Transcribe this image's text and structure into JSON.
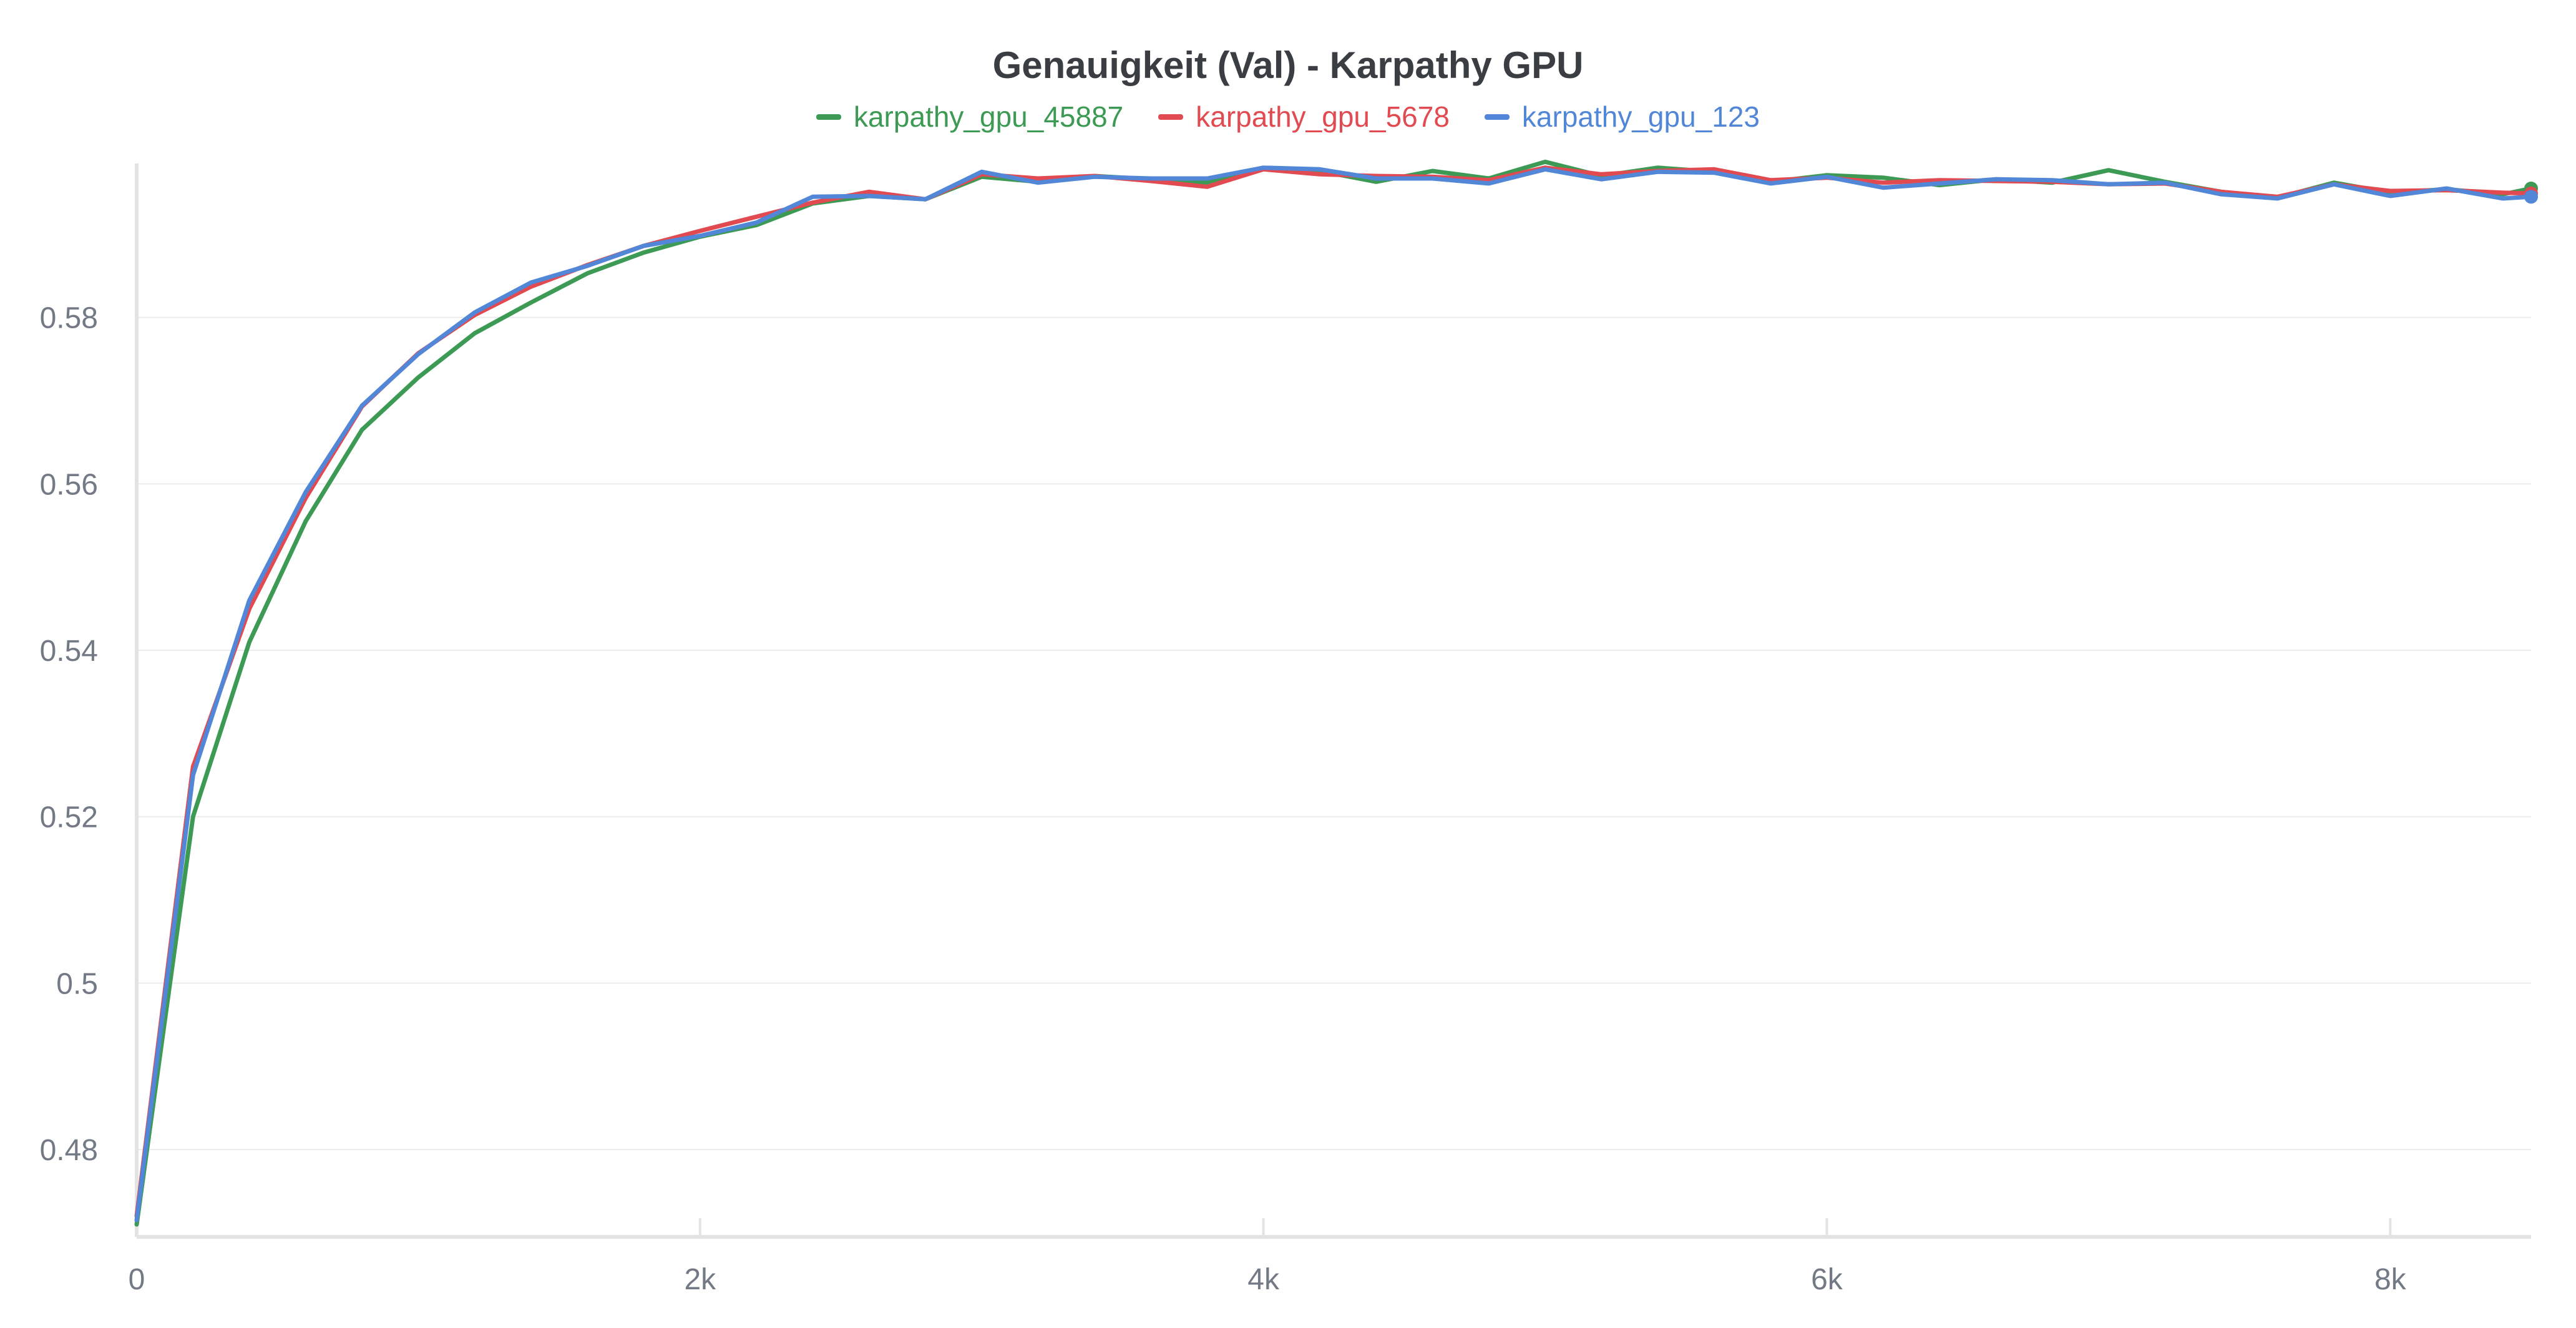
{
  "chart_data": {
    "type": "line",
    "title": "Genauigkeit (Val) - Karpathy GPU",
    "xlabel": "",
    "ylabel": "",
    "xlim": [
      0,
      8500
    ],
    "ylim": [
      0.4695,
      0.5985
    ],
    "xticks": [
      0,
      2000,
      4000,
      6000,
      8000
    ],
    "xtick_labels": [
      "0",
      "2k",
      "4k",
      "6k",
      "8k"
    ],
    "yticks": [
      0.48,
      0.5,
      0.52,
      0.54,
      0.56,
      0.58
    ],
    "ytick_labels": [
      "0.48",
      "0.5",
      "0.52",
      "0.54",
      "0.56",
      "0.58"
    ],
    "grid": true,
    "legend_position": "top-center",
    "x": [
      0,
      200,
      400,
      600,
      800,
      1000,
      1200,
      1400,
      1600,
      1800,
      2000,
      2200,
      2400,
      2600,
      2800,
      3000,
      3200,
      3400,
      3600,
      3800,
      4000,
      4200,
      4400,
      4600,
      4800,
      5000,
      5200,
      5400,
      5600,
      5800,
      6000,
      6200,
      6400,
      6600,
      6800,
      7000,
      7200,
      7400,
      7600,
      7800,
      8000,
      8200,
      8400,
      8500
    ],
    "series": [
      {
        "name": "karpathy_gpu_45887",
        "color": "#3c9a54",
        "values": [
          0.471,
          0.52,
          0.541,
          0.5555,
          0.5665,
          0.5728,
          0.5781,
          0.5818,
          0.5853,
          0.5878,
          0.5897,
          0.5911,
          0.5937,
          0.5946,
          0.5942,
          0.5969,
          0.5963,
          0.597,
          0.5966,
          0.5962,
          0.5979,
          0.5976,
          0.5963,
          0.5976,
          0.5967,
          0.5987,
          0.597,
          0.598,
          0.5975,
          0.5963,
          0.5971,
          0.5968,
          0.5959,
          0.5966,
          0.5962,
          0.5977,
          0.5963,
          0.5951,
          0.5944,
          0.5962,
          0.595,
          0.5954,
          0.5948,
          0.5955
        ]
      },
      {
        "name": "karpathy_gpu_5678",
        "color": "#e24a51",
        "values": [
          0.472,
          0.526,
          0.545,
          0.5583,
          0.5693,
          0.5757,
          0.5803,
          0.5837,
          0.5863,
          0.5886,
          0.5904,
          0.5921,
          0.5938,
          0.5951,
          0.5942,
          0.5972,
          0.5967,
          0.597,
          0.5964,
          0.5957,
          0.5978,
          0.5972,
          0.597,
          0.5969,
          0.5965,
          0.598,
          0.5972,
          0.5976,
          0.5978,
          0.5965,
          0.5968,
          0.5962,
          0.5965,
          0.5964,
          0.5963,
          0.596,
          0.5961,
          0.5951,
          0.5945,
          0.596,
          0.5952,
          0.5953,
          0.595,
          0.5949
        ]
      },
      {
        "name": "karpathy_gpu_123",
        "color": "#5287d8",
        "values": [
          0.4715,
          0.525,
          0.546,
          0.559,
          0.5694,
          0.5756,
          0.5806,
          0.5842,
          0.5862,
          0.5886,
          0.5898,
          0.5914,
          0.5945,
          0.5946,
          0.5942,
          0.5975,
          0.5962,
          0.5969,
          0.5967,
          0.5967,
          0.598,
          0.5978,
          0.5967,
          0.5967,
          0.5961,
          0.5978,
          0.5966,
          0.5975,
          0.5974,
          0.5961,
          0.5969,
          0.5956,
          0.5961,
          0.5966,
          0.5965,
          0.596,
          0.5962,
          0.5948,
          0.5943,
          0.596,
          0.5946,
          0.5955,
          0.5943,
          0.5945
        ]
      }
    ]
  }
}
